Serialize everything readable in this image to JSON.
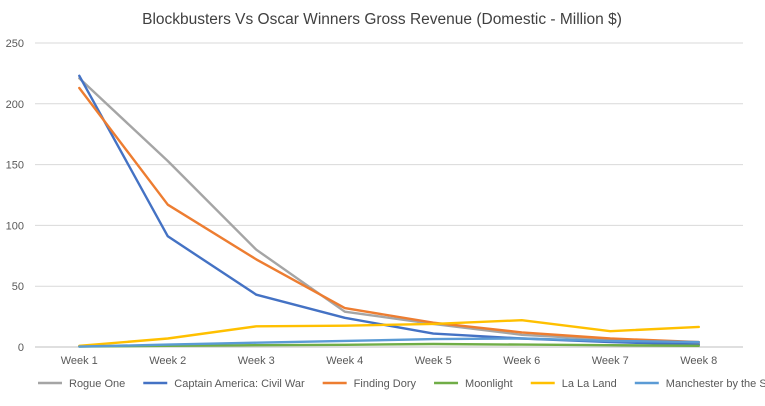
{
  "chart_data": {
    "type": "line",
    "title": "Blockbusters Vs Oscar Winners Gross Revenue (Domestic - Million $)",
    "categories": [
      "Week 1",
      "Week 2",
      "Week 3",
      "Week 4",
      "Week 5",
      "Week 6",
      "Week 7",
      "Week 8"
    ],
    "ylim": [
      0,
      250
    ],
    "yticks": [
      0,
      50,
      100,
      150,
      200,
      250
    ],
    "grid": true,
    "legend_position": "bottom",
    "series": [
      {
        "name": "Rogue One",
        "color": "#a5a5a5",
        "values": [
          221,
          153,
          80,
          29,
          19,
          10,
          6,
          3
        ]
      },
      {
        "name": "Captain America: Civil War",
        "color": "#4472c4",
        "values": [
          223,
          91,
          43,
          24,
          11,
          7,
          4,
          2
        ]
      },
      {
        "name": "Finding Dory",
        "color": "#ed7d31",
        "values": [
          213,
          117,
          72,
          32,
          20,
          12,
          7,
          4
        ]
      },
      {
        "name": "Moonlight",
        "color": "#70ad47",
        "values": [
          0.4,
          1,
          1.5,
          1.8,
          2.5,
          2,
          1.5,
          1
        ]
      },
      {
        "name": "La La Land",
        "color": "#ffc000",
        "values": [
          1,
          7,
          17,
          17.5,
          19,
          22,
          13,
          16.5
        ]
      },
      {
        "name": "Manchester by the Sea",
        "color": "#5b9bd5",
        "values": [
          0.3,
          2,
          3.5,
          5,
          6.5,
          7,
          5,
          4
        ]
      }
    ]
  }
}
